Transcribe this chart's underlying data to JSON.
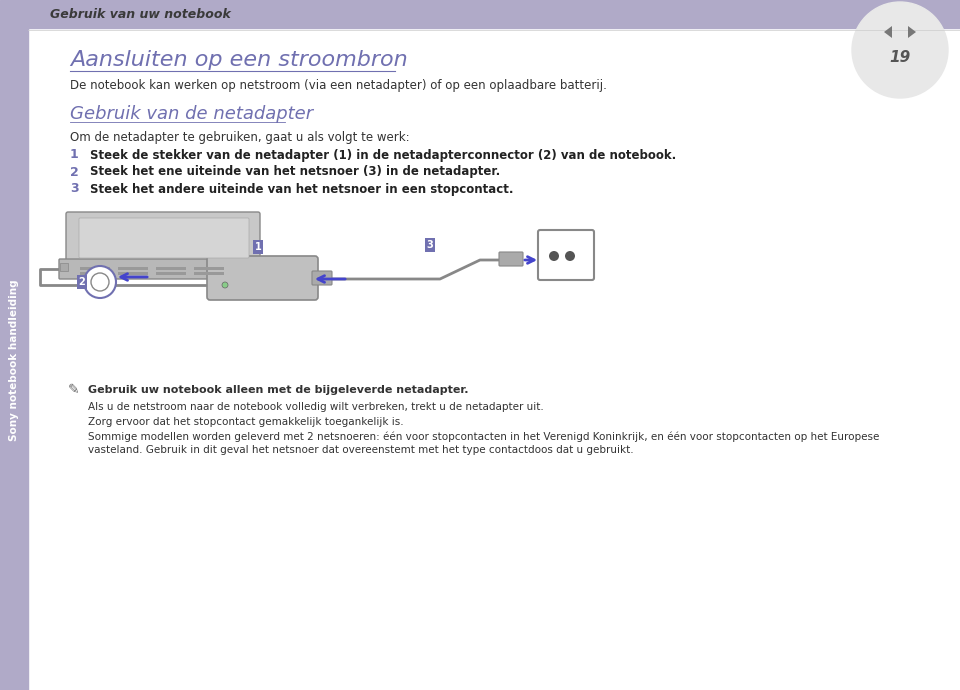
{
  "bg_color": "#ffffff",
  "header_bg": "#b0aac8",
  "header_text": "Gebruik van uw notebook",
  "header_text_color": "#3a3a3a",
  "sidebar_bg": "#b0aac8",
  "page_number": "19",
  "title": "Aansluiten op een stroombron",
  "title_color": "#7070b0",
  "subtitle": "De notebook kan werken op netstroom (via een netadapter) of op een oplaadbare batterij.",
  "section_title": "Gebruik van de netadapter",
  "section_title_color": "#7070b0",
  "intro": "Om de netadapter te gebruiken, gaat u als volgt te werk:",
  "steps": [
    "Steek de stekker van de netadapter (1) in de netadapterconnector (2) van de notebook.",
    "Steek het ene uiteinde van het netsnoer (3) in de netadapter.",
    "Steek het andere uiteinde van het netsnoer in een stopcontact."
  ],
  "step_numbers": [
    "1",
    "2",
    "3"
  ],
  "step_color": "#7070b0",
  "note_text": "Gebruik uw notebook alleen met de bijgeleverde netadapter.",
  "note_lines": [
    "Als u de netstroom naar de notebook volledig wilt verbreken, trekt u de netadapter uit.",
    "Zorg ervoor dat het stopcontact gemakkelijk toegankelijk is.",
    "Sommige modellen worden geleverd met 2 netsnoeren: één voor stopcontacten in het Verenigd Koninkrijk, en één voor stopcontacten op het Europese",
    "vasteland. Gebruik in dit geval het netsnoer dat overeenstemt met het type contactdoos dat u gebruikt."
  ],
  "sidebar_label": "Sony notebook handleiding"
}
